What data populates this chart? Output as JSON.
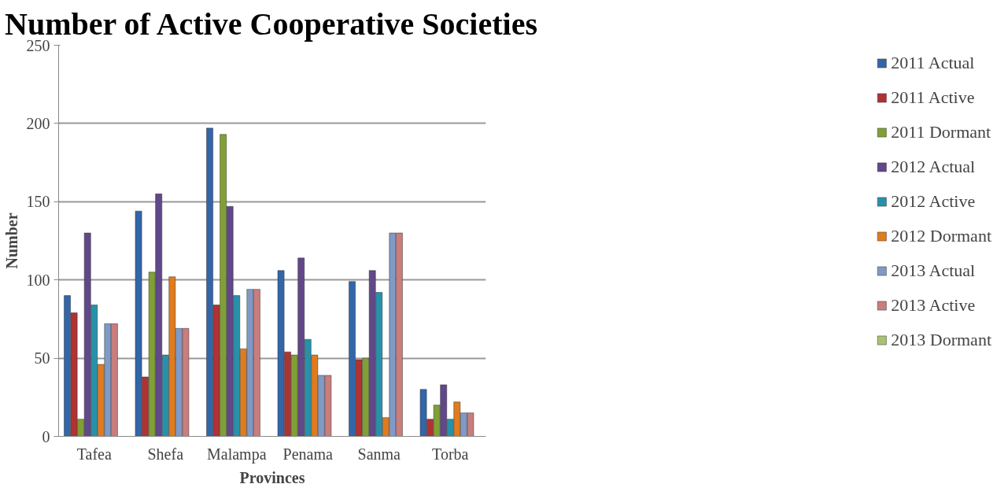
{
  "chart_data": {
    "type": "bar",
    "title": "Number of Active Cooperative Societies",
    "xlabel": "Provinces",
    "ylabel": "Number",
    "categories": [
      "Tafea",
      "Shefa",
      "Malampa",
      "Penama",
      "Sanma",
      "Torba"
    ],
    "series": [
      {
        "name": "2011 Actual",
        "color": "#3366a8",
        "values": [
          90,
          144,
          197,
          106,
          99,
          30
        ]
      },
      {
        "name": "2011 Active",
        "color": "#b03232",
        "values": [
          79,
          38,
          84,
          54,
          49,
          11
        ]
      },
      {
        "name": "2011 Dormant",
        "color": "#80a035",
        "values": [
          11,
          105,
          193,
          52,
          50,
          20
        ]
      },
      {
        "name": "2012 Actual",
        "color": "#614888",
        "values": [
          130,
          155,
          147,
          114,
          106,
          33
        ]
      },
      {
        "name": "2012 Active",
        "color": "#2891aa",
        "values": [
          84,
          52,
          90,
          62,
          92,
          11
        ]
      },
      {
        "name": "2012 Dormant",
        "color": "#e07b1e",
        "values": [
          46,
          102,
          56,
          52,
          12,
          22
        ]
      },
      {
        "name": "2013 Actual",
        "color": "#809ac6",
        "values": [
          72,
          69,
          94,
          39,
          130,
          15
        ]
      },
      {
        "name": "2013 Active",
        "color": "#c97d7d",
        "values": [
          72,
          69,
          94,
          39,
          130,
          15
        ]
      },
      {
        "name": "2013 Dormant",
        "color": "#a9c272",
        "values": [
          null,
          null,
          null,
          null,
          null,
          null
        ]
      }
    ],
    "ylim": [
      0,
      250
    ],
    "yticks": [
      0,
      50,
      100,
      150,
      200,
      250
    ],
    "grid": "y",
    "legend": "right"
  }
}
